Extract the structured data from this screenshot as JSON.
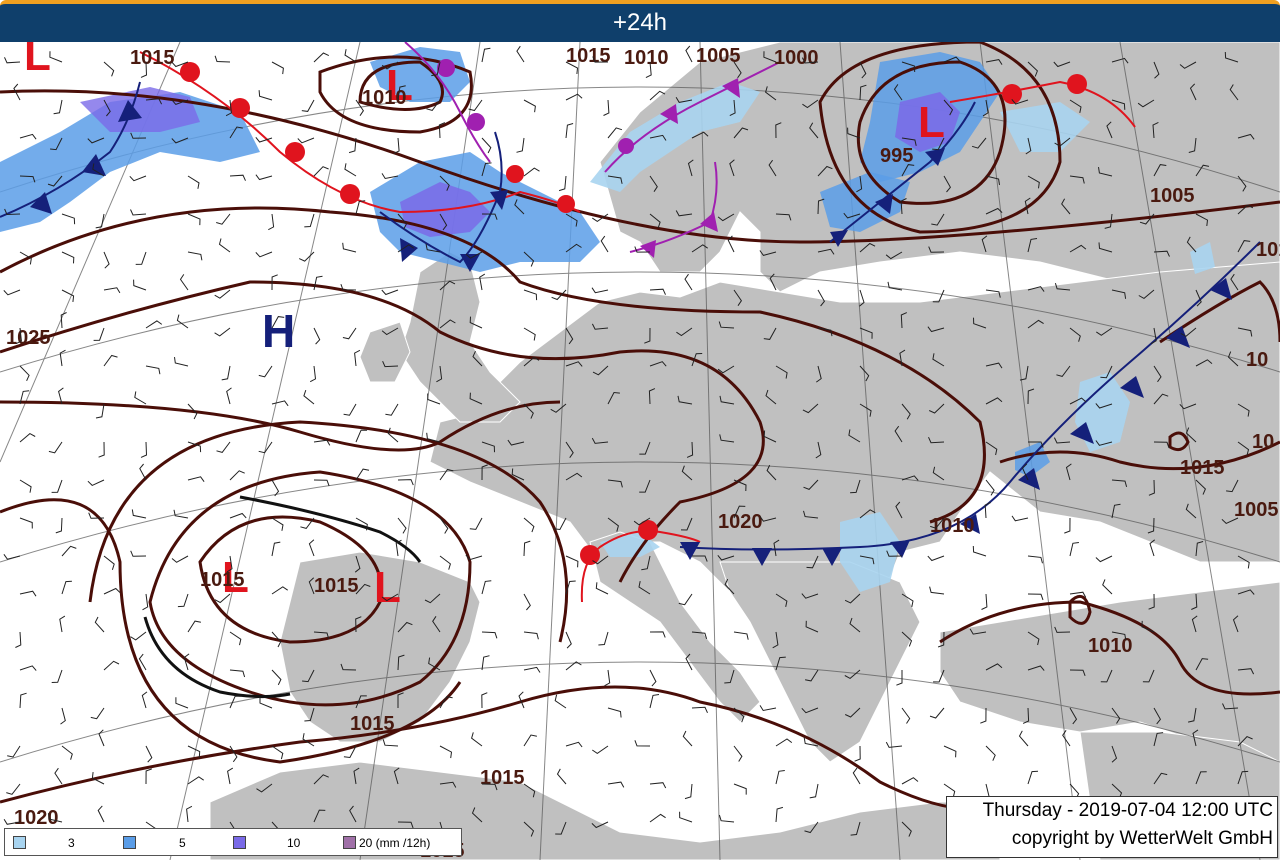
{
  "title": "+24h",
  "valid_time": "Thursday - 2019-07-04 12:00 UTC",
  "copyright": "copyright by WetterWelt GmbH",
  "legend": [
    {
      "label": "3",
      "color": "#a8d4f0"
    },
    {
      "label": "5",
      "color": "#5a9de8"
    },
    {
      "label": "10",
      "color": "#7a6ae8"
    },
    {
      "label": "20 (mm /12h)",
      "color": "#a070a8"
    }
  ],
  "pressure_centers": [
    {
      "type": "L",
      "label": "L"
    },
    {
      "type": "L",
      "label": "L"
    },
    {
      "type": "L",
      "label": "L"
    },
    {
      "type": "H",
      "label": "H"
    },
    {
      "type": "L",
      "label": "L"
    },
    {
      "type": "L",
      "label": "L"
    }
  ],
  "isobar_labels": [
    "1015",
    "1010",
    "1015",
    "1010",
    "1005",
    "1000",
    "995",
    "1005",
    "1025",
    "1015",
    "1015",
    "1020",
    "1015",
    "1015",
    "1015",
    "1010",
    "1005",
    "1010",
    "1020",
    "1015",
    "10",
    "10",
    "10",
    "1015"
  ],
  "colors": {
    "titlebar": "#0f3f6b",
    "titlebar_border": "#f0a020",
    "isobar": "#4a0e08",
    "warm_front": "#e0141e",
    "cold_front": "#15207a",
    "occluded_front": "#a020b0",
    "land": "#c0c0c0",
    "sea": "#ffffff"
  }
}
